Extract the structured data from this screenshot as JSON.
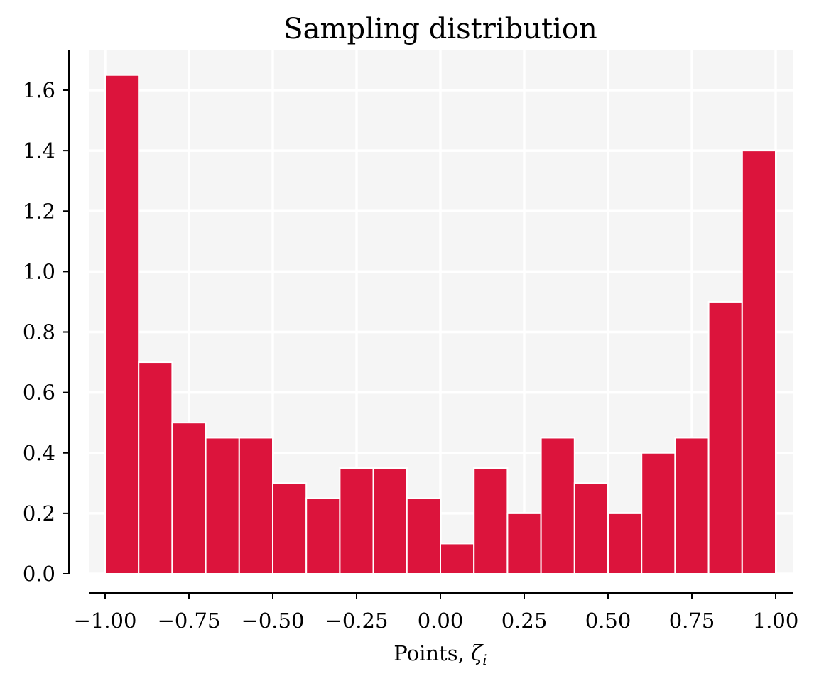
{
  "chart_data": {
    "type": "bar",
    "title": "Sampling distribution",
    "xlabel": "Points, ",
    "xlabel_symbol": "ζ",
    "xlabel_subscript": "i",
    "ylabel": "",
    "bin_edges": [
      -1.0,
      -0.9,
      -0.8,
      -0.7,
      -0.6,
      -0.5,
      -0.4,
      -0.3,
      -0.2,
      -0.1,
      0.0,
      0.1,
      0.2,
      0.3,
      0.4,
      0.5,
      0.6,
      0.7,
      0.8,
      0.9,
      1.0
    ],
    "values": [
      1.65,
      0.7,
      0.5,
      0.45,
      0.45,
      0.3,
      0.25,
      0.35,
      0.35,
      0.25,
      0.1,
      0.35,
      0.2,
      0.45,
      0.3,
      0.2,
      0.4,
      0.45,
      0.9,
      1.4
    ],
    "xlim": [
      -1.05,
      1.05
    ],
    "ylim": [
      0.0,
      1.72
    ],
    "xticks": [
      -1.0,
      -0.75,
      -0.5,
      -0.25,
      0.0,
      0.25,
      0.5,
      0.75,
      1.0
    ],
    "xtick_labels": [
      "−1.00",
      "−0.75",
      "−0.50",
      "−0.25",
      "0.00",
      "0.25",
      "0.50",
      "0.75",
      "1.00"
    ],
    "yticks": [
      0.0,
      0.2,
      0.4,
      0.6,
      0.8,
      1.0,
      1.2,
      1.4,
      1.6
    ],
    "ytick_labels": [
      "0.0",
      "0.2",
      "0.4",
      "0.6",
      "0.8",
      "1.0",
      "1.2",
      "1.4",
      "1.6"
    ],
    "grid": true,
    "bar_color": "#DC143C",
    "edge_color": "#ffffff",
    "plot_background": "#f5f5f5"
  }
}
